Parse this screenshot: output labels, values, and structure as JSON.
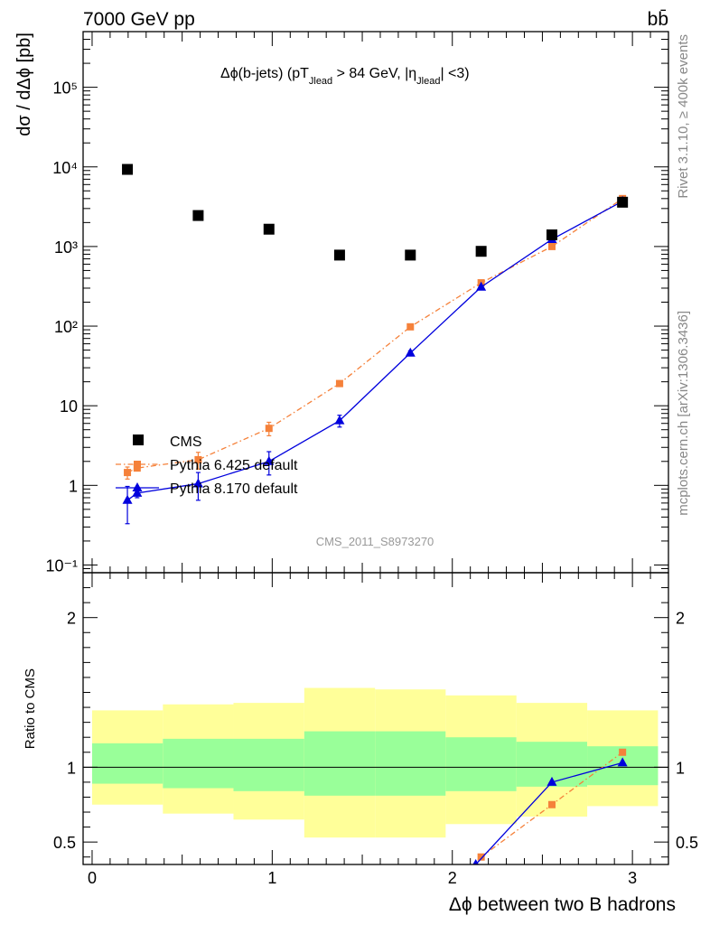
{
  "header": {
    "energy_label": "7000 GeV pp",
    "process_label": "bb̄",
    "rivet_label": "Rivet 3.1.10, ≥ 400k events",
    "mcplots_label": "mcplots.cern.ch [arXiv:1306.3436]"
  },
  "chart_data": [
    {
      "type": "scatter",
      "title": "Δϕ(b-jets) (pT_Jlead > 84 GeV, |η_Jlead| <3)",
      "title_parts": {
        "prefix": "Δϕ(b-jets) (pT",
        "sub1": "Jlead",
        "middle": " >  84 GeV, |η",
        "sub2": "Jlead",
        "suffix": "| <3)"
      },
      "ylabel": "dσ / dΔϕ [pb]",
      "y_scale": "log",
      "ylim": [
        0.08,
        500000
      ],
      "xlim": [
        -0.05,
        3.2
      ],
      "y_tick_labels": [
        "10⁻¹",
        "1",
        "10",
        "10²",
        "10³",
        "10⁴",
        "10⁵"
      ],
      "y_tick_values": [
        0.1,
        1,
        10,
        100,
        1000,
        10000,
        100000
      ],
      "watermark": "CMS_2011_S8973270",
      "legend_position": "bottom-left",
      "series": [
        {
          "name": "CMS",
          "color": "#000000",
          "marker": "square",
          "x": [
            0.196,
            0.589,
            0.982,
            1.374,
            1.767,
            2.16,
            2.553,
            2.945
          ],
          "y": [
            9300,
            2450,
            1650,
            780,
            780,
            870,
            1400,
            3600
          ]
        },
        {
          "name": "Pythia 6.425 default",
          "color": "#f5813a",
          "marker": "square",
          "line": "dashdot",
          "x": [
            0.196,
            0.25,
            0.589,
            0.982,
            1.374,
            1.767,
            2.16,
            2.553,
            2.945
          ],
          "y": [
            1.45,
            1.65,
            2.1,
            5.2,
            19,
            98,
            350,
            1000,
            4000
          ],
          "err": [
            0.25,
            0.1,
            0.5,
            1.0,
            1.5,
            4,
            15,
            30,
            80
          ]
        },
        {
          "name": "Pythia 8.170 default",
          "color": "#0000dd",
          "marker": "triangle",
          "line": "solid",
          "x": [
            0.196,
            0.25,
            0.589,
            0.982,
            1.374,
            1.767,
            2.16,
            2.553,
            2.945
          ],
          "y": [
            0.65,
            0.8,
            1.05,
            2.0,
            6.5,
            46,
            310,
            1230,
            3700
          ],
          "err": [
            0.32,
            0.1,
            0.4,
            0.65,
            1.1,
            3,
            12,
            40,
            90
          ]
        }
      ]
    },
    {
      "type": "scatter",
      "ylabel": "Ratio to CMS",
      "xlabel": "Δϕ between two B hadrons",
      "ylim": [
        0.35,
        2.3
      ],
      "xlim": [
        -0.05,
        3.2
      ],
      "y_tick_labels": [
        "0.5",
        "1",
        "2"
      ],
      "y_tick_values": [
        0.5,
        1,
        2
      ],
      "x_tick_labels": [
        "0",
        "1",
        "2",
        "3"
      ],
      "x_tick_values": [
        0,
        1,
        2,
        3
      ],
      "bands": {
        "edges": [
          0.0,
          0.393,
          0.785,
          1.178,
          1.571,
          1.963,
          2.356,
          2.749,
          3.142
        ],
        "yellow": [
          [
            0.75,
            1.38
          ],
          [
            0.69,
            1.42
          ],
          [
            0.65,
            1.43
          ],
          [
            0.53,
            1.53
          ],
          [
            0.53,
            1.52
          ],
          [
            0.62,
            1.48
          ],
          [
            0.67,
            1.43
          ],
          [
            0.74,
            1.38
          ]
        ],
        "green": [
          [
            0.89,
            1.16
          ],
          [
            0.86,
            1.19
          ],
          [
            0.84,
            1.19
          ],
          [
            0.81,
            1.24
          ],
          [
            0.81,
            1.24
          ],
          [
            0.84,
            1.2
          ],
          [
            0.87,
            1.17
          ],
          [
            0.88,
            1.14
          ]
        ],
        "yellow_color": "#ffff99",
        "green_color": "#99ff99"
      },
      "series": [
        {
          "name": "Pythia 6.425 default",
          "color": "#f5813a",
          "marker": "square",
          "line": "dashdot",
          "x": [
            2.16,
            2.553,
            2.945
          ],
          "y": [
            0.4,
            0.75,
            1.1
          ]
        },
        {
          "name": "Pythia 8.170 default",
          "color": "#0000dd",
          "marker": "triangle",
          "line": "solid",
          "x": [
            2.13,
            2.553,
            2.945
          ],
          "y": [
            0.35,
            0.9,
            1.03
          ]
        }
      ]
    }
  ]
}
